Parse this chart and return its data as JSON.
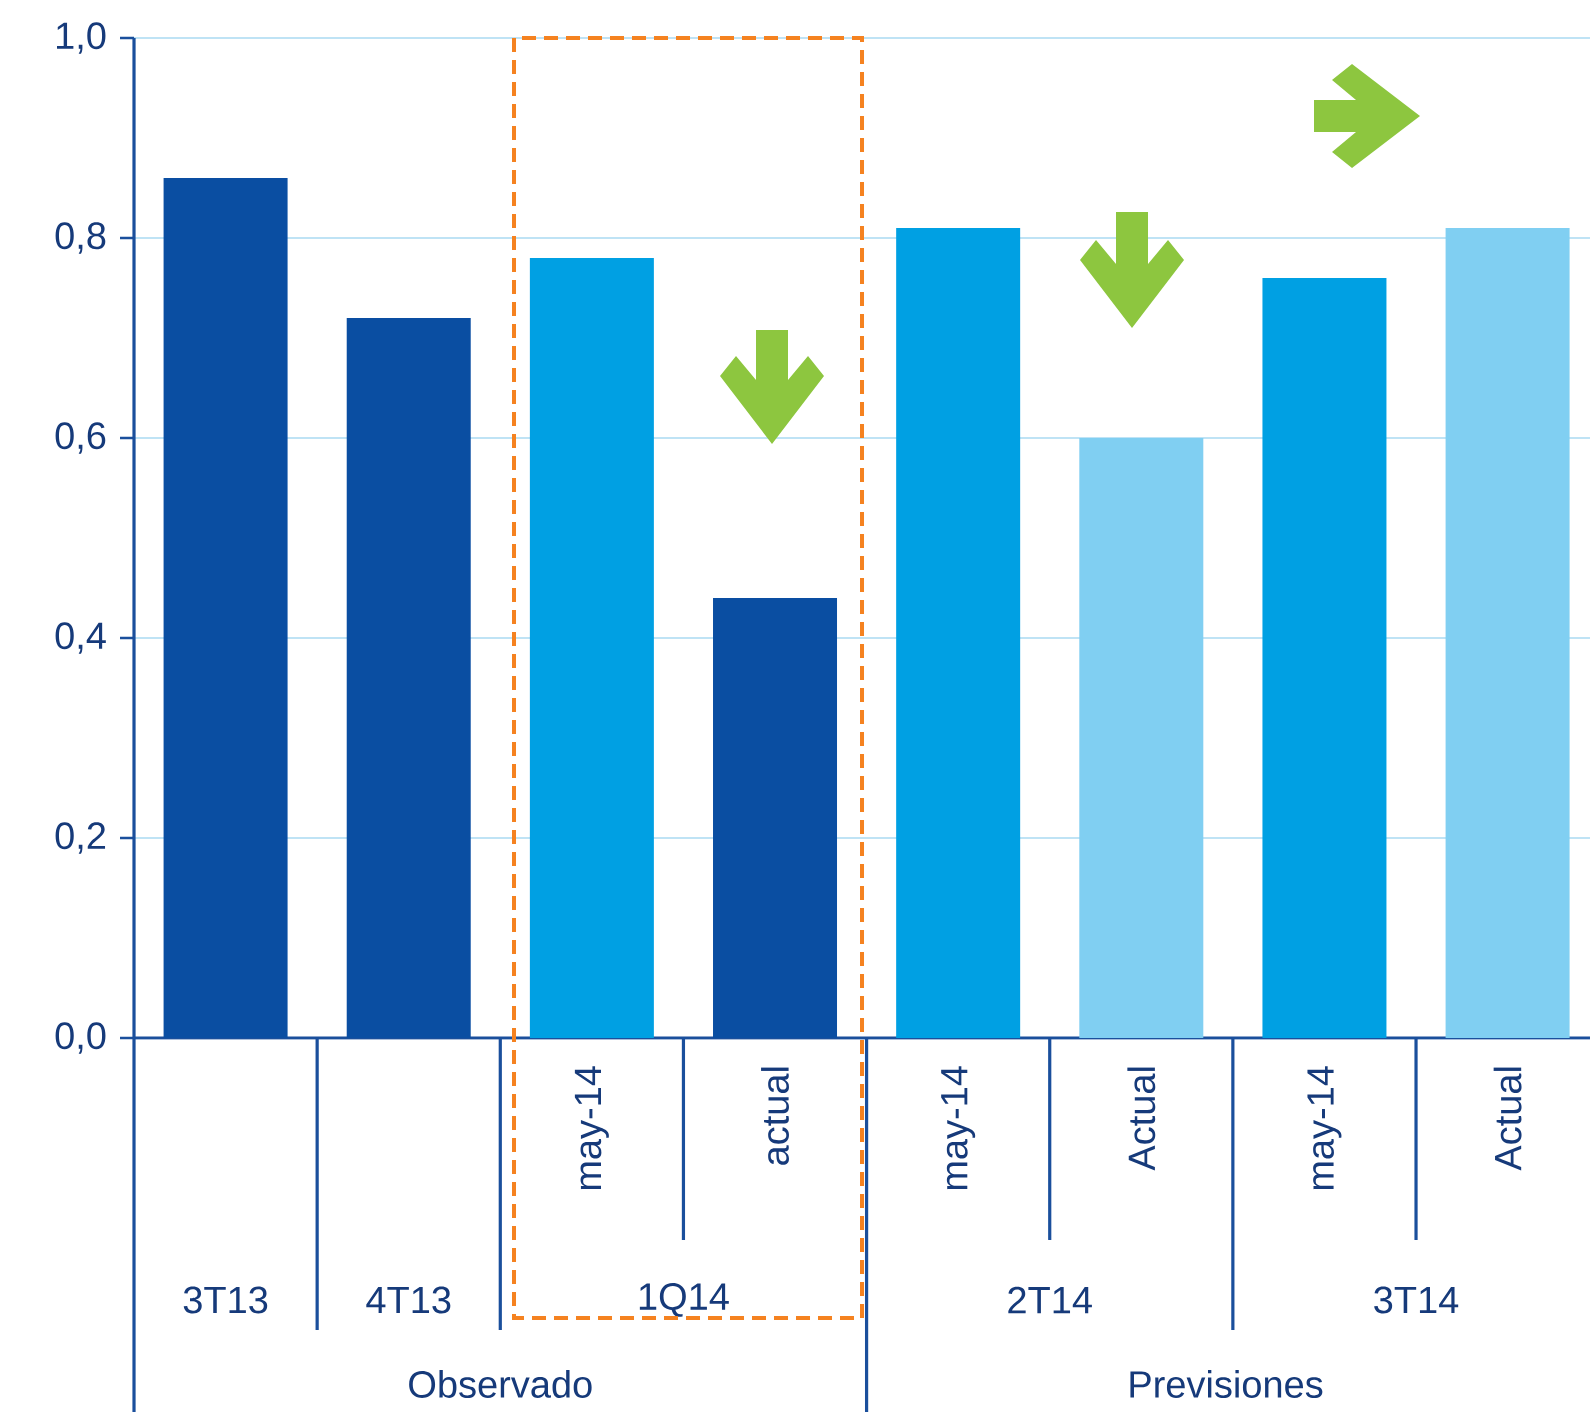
{
  "chart_data": {
    "type": "bar",
    "categories": [
      null,
      null,
      "may-14",
      "actual",
      "may-14",
      "Actual",
      "may-14",
      "Actual"
    ],
    "values": [
      0.86,
      0.72,
      0.78,
      0.44,
      0.81,
      0.6,
      0.76,
      0.81
    ],
    "colors": [
      "#0a4ea2",
      "#0a4ea2",
      "#00a0e3",
      "#0a4ea2",
      "#00a0e3",
      "#80cff2",
      "#00a0e3",
      "#80cff2"
    ],
    "ylim": [
      0,
      1
    ],
    "yticks": [
      {
        "value": 0,
        "label": "0,0"
      },
      {
        "value": 0.2,
        "label": "0,2"
      },
      {
        "value": 0.4,
        "label": "0,4"
      },
      {
        "value": 0.6,
        "label": "0,6"
      },
      {
        "value": 0.8,
        "label": "0,8"
      },
      {
        "value": 1,
        "label": "1,0"
      }
    ],
    "grid": "y",
    "annotations": [
      "3T13",
      "4T13",
      "1Q14",
      "2T14",
      "3T14",
      "Observado",
      "Previsiones"
    ]
  }
}
